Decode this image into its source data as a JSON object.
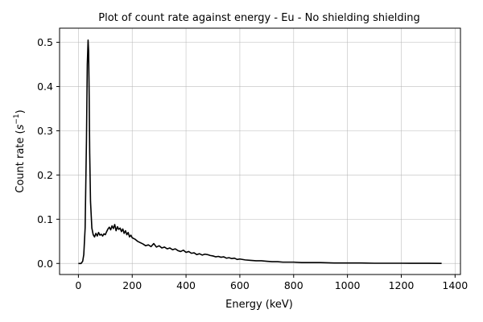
{
  "chart_data": {
    "type": "line",
    "title": "Plot of count rate against energy - Eu - No shielding shielding",
    "xlabel": "Energy (keV)",
    "ylabel_prefix": "Count rate (",
    "ylabel_base": "s",
    "ylabel_exponent": "−1",
    "ylabel_suffix": ")",
    "xlim": [
      -70,
      1420
    ],
    "ylim": [
      -0.025,
      0.532
    ],
    "xticks": [
      0,
      200,
      400,
      600,
      800,
      1000,
      1200,
      1400
    ],
    "xtick_labels": [
      "0",
      "200",
      "400",
      "600",
      "800",
      "1000",
      "1200",
      "1400"
    ],
    "yticks": [
      0.0,
      0.1,
      0.2,
      0.3,
      0.4,
      0.5
    ],
    "ytick_labels": [
      "0.0",
      "0.1",
      "0.2",
      "0.3",
      "0.4",
      "0.5"
    ],
    "grid": true,
    "line_color": "#000000",
    "grid_color": "#b0b0b0",
    "series": [
      {
        "x": [
          0,
          10,
          16,
          20,
          25,
          30,
          33,
          36,
          38,
          40,
          42,
          45,
          50,
          55,
          60,
          65,
          70,
          75,
          80,
          85,
          90,
          95,
          100,
          105,
          110,
          115,
          120,
          125,
          130,
          135,
          140,
          145,
          150,
          155,
          160,
          165,
          170,
          175,
          180,
          185,
          190,
          195,
          200,
          210,
          220,
          230,
          240,
          250,
          260,
          270,
          280,
          290,
          300,
          310,
          320,
          330,
          340,
          350,
          360,
          370,
          380,
          390,
          400,
          410,
          420,
          430,
          440,
          450,
          460,
          470,
          480,
          490,
          500,
          510,
          520,
          530,
          540,
          550,
          560,
          570,
          580,
          590,
          600,
          620,
          640,
          660,
          680,
          700,
          720,
          740,
          760,
          780,
          800,
          830,
          860,
          900,
          950,
          1000,
          1050,
          1100,
          1150,
          1200,
          1250,
          1300,
          1350
        ],
        "y": [
          0.0,
          0.0,
          0.005,
          0.02,
          0.08,
          0.28,
          0.45,
          0.505,
          0.48,
          0.38,
          0.25,
          0.14,
          0.08,
          0.065,
          0.06,
          0.068,
          0.062,
          0.07,
          0.064,
          0.066,
          0.062,
          0.067,
          0.065,
          0.072,
          0.078,
          0.082,
          0.076,
          0.085,
          0.079,
          0.088,
          0.074,
          0.083,
          0.077,
          0.08,
          0.072,
          0.078,
          0.068,
          0.074,
          0.065,
          0.07,
          0.06,
          0.064,
          0.058,
          0.055,
          0.05,
          0.047,
          0.044,
          0.04,
          0.042,
          0.038,
          0.045,
          0.037,
          0.04,
          0.035,
          0.037,
          0.033,
          0.035,
          0.031,
          0.033,
          0.029,
          0.027,
          0.03,
          0.025,
          0.027,
          0.023,
          0.024,
          0.02,
          0.022,
          0.019,
          0.021,
          0.02,
          0.018,
          0.017,
          0.015,
          0.016,
          0.014,
          0.015,
          0.012,
          0.013,
          0.011,
          0.012,
          0.009,
          0.01,
          0.008,
          0.007,
          0.006,
          0.006,
          0.005,
          0.004,
          0.004,
          0.003,
          0.003,
          0.003,
          0.002,
          0.002,
          0.002,
          0.001,
          0.001,
          0.001,
          0.0005,
          0.0005,
          0.0005,
          0.0003,
          0.0003,
          0.0002
        ]
      }
    ]
  }
}
